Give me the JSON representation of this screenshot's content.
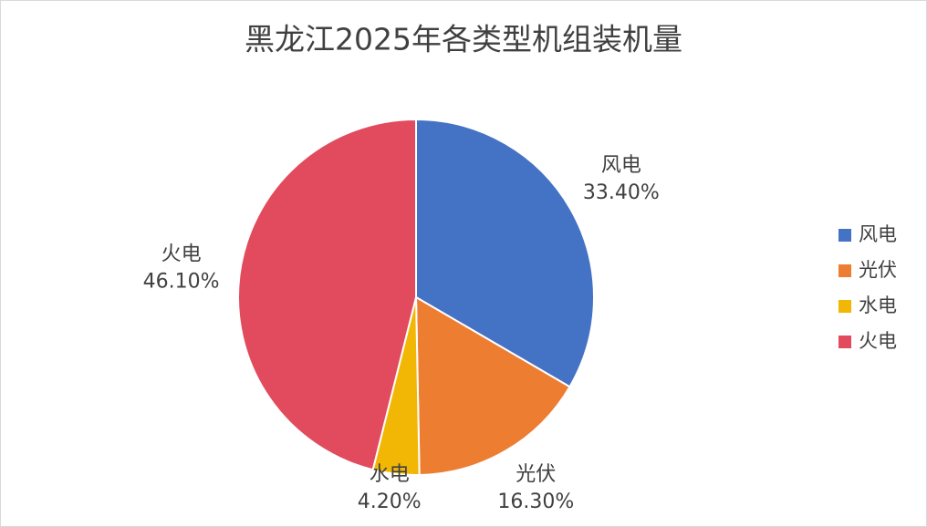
{
  "chart_data": {
    "type": "pie",
    "title": "黑龙江2025年各类型机组装机量",
    "categories": [
      "风电",
      "光伏",
      "水电",
      "火电"
    ],
    "values": [
      33.4,
      16.3,
      4.2,
      46.1
    ],
    "value_labels": [
      "33.40%",
      "16.30%",
      "4.20%",
      "46.10%"
    ],
    "colors": [
      "#4472c4",
      "#ed7d31",
      "#f2b705",
      "#e24a5d"
    ],
    "legend": "right"
  }
}
